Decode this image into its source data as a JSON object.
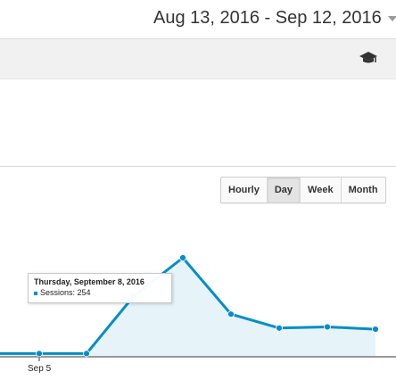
{
  "date_range": {
    "label": "Aug 13, 2016 - Sep 12, 2016",
    "dropdown_icon": "chevron-down-icon"
  },
  "toolbar": {
    "help_icon": "graduation-cap-icon"
  },
  "granularity": {
    "options": [
      "Hourly",
      "Day",
      "Week",
      "Month"
    ],
    "selected": "Day"
  },
  "chart_data": {
    "type": "area",
    "series": [
      {
        "name": "Sessions",
        "values": [
          6,
          6,
          6,
          155,
          254,
          108,
          72,
          75,
          69
        ]
      }
    ],
    "x_tick_labels": [
      "Sep 5"
    ],
    "ylim": [
      0,
      254
    ],
    "grid": false,
    "colors": {
      "line": "#058dc7",
      "fill": "#e6f3f9",
      "axis": "#333333"
    }
  },
  "tooltip": {
    "date": "Thursday, September 8, 2016",
    "label": "Sessions: 254"
  }
}
